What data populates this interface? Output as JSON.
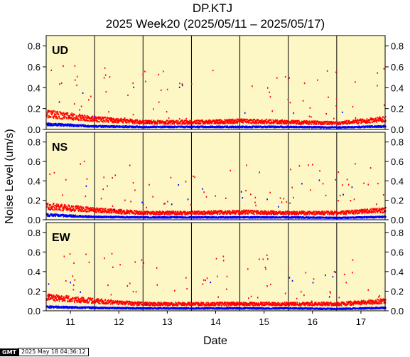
{
  "title_line1": "DP.KTJ",
  "title_line2": "2025 Week20 (2025/05/11 – 2025/05/17)",
  "gmt_logo": "GMT",
  "gmt_timestamp": "2025 May 18 04:36:12",
  "colors": {
    "background": "#fdf7c6",
    "red_series": "#ff0000",
    "blue_series": "#0000ff"
  },
  "chart_data": {
    "type": "scatter",
    "xlabel": "Date",
    "ylabel": "Noise Level (um/s)",
    "x_ticks": [
      "11",
      "12",
      "13",
      "14",
      "15",
      "16",
      "17"
    ],
    "x_range_days": [
      10.5,
      17.5
    ],
    "ylim": [
      0,
      0.9
    ],
    "y_ticks": [
      "0.0",
      "0.2",
      "0.4",
      "0.6",
      "0.8"
    ],
    "grid": "vertical lines at day boundaries",
    "panels": [
      {
        "label": "UD",
        "series": [
          {
            "color": "red",
            "baseline_by_day": [
              0.15,
              0.1,
              0.07,
              0.07,
              0.08,
              0.07,
              0.06,
              0.1
            ]
          },
          {
            "color": "blue",
            "baseline_by_day": [
              0.05,
              0.03,
              0.025,
              0.025,
              0.025,
              0.025,
              0.02,
              0.03
            ]
          }
        ]
      },
      {
        "label": "NS",
        "series": [
          {
            "color": "red",
            "baseline_by_day": [
              0.14,
              0.1,
              0.07,
              0.07,
              0.08,
              0.07,
              0.07,
              0.1
            ]
          },
          {
            "color": "blue",
            "baseline_by_day": [
              0.05,
              0.03,
              0.025,
              0.025,
              0.025,
              0.025,
              0.02,
              0.03
            ]
          }
        ]
      },
      {
        "label": "EW",
        "series": [
          {
            "color": "red",
            "baseline_by_day": [
              0.14,
              0.1,
              0.07,
              0.07,
              0.07,
              0.07,
              0.07,
              0.1
            ]
          },
          {
            "color": "blue",
            "baseline_by_day": [
              0.04,
              0.03,
              0.025,
              0.025,
              0.025,
              0.025,
              0.02,
              0.03
            ]
          }
        ]
      }
    ]
  }
}
